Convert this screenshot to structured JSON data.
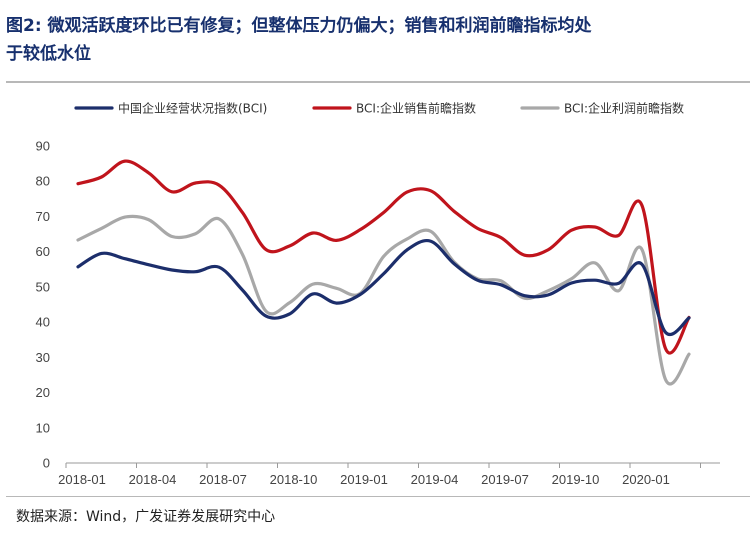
{
  "header": {
    "title_line1": "图2: 微观活跃度环比已有修复；但整体压力仍偏大；销售和利润前瞻指标均处",
    "title_line2": "于较低水位"
  },
  "footer": {
    "source": "数据来源：Wind，广发证券发展研究中心"
  },
  "colors": {
    "title": "#17306e",
    "bci": "#1c2e6b",
    "sales": "#c0141c",
    "profit": "#a8a8a8"
  },
  "chart_data": {
    "type": "line",
    "title": "",
    "xlabel": "",
    "ylabel": "",
    "ylim": [
      0,
      90
    ],
    "yticks": [
      "0",
      "10",
      "20",
      "30",
      "40",
      "50",
      "60",
      "70",
      "80",
      "90"
    ],
    "xtick_labels": [
      "2018-01",
      "2018-04",
      "2018-07",
      "2018-10",
      "2019-01",
      "2019-04",
      "2019-07",
      "2019-10",
      "2020-01"
    ],
    "x": [
      "2018-01",
      "2018-02",
      "2018-03",
      "2018-04",
      "2018-05",
      "2018-06",
      "2018-07",
      "2018-08",
      "2018-09",
      "2018-10",
      "2018-11",
      "2018-12",
      "2019-01",
      "2019-02",
      "2019-03",
      "2019-04",
      "2019-05",
      "2019-06",
      "2019-07",
      "2019-08",
      "2019-09",
      "2019-10",
      "2019-11",
      "2019-12",
      "2020-01",
      "2020-02",
      "2020-03"
    ],
    "legend": "top",
    "series": [
      {
        "name": "中国企业经营状况指数(BCI)",
        "key": "bci",
        "values": [
          55.7,
          59.5,
          58,
          56.3,
          54.8,
          54.3,
          55.6,
          49.1,
          41.7,
          42.3,
          48,
          45.4,
          47.8,
          53.7,
          60.5,
          63,
          56.6,
          51.9,
          50.6,
          47.5,
          47.7,
          51.1,
          51.9,
          51,
          56.4,
          37.1,
          41.2
        ]
      },
      {
        "name": "BCI:企业销售前瞻指数",
        "key": "sales",
        "values": [
          79.3,
          81.2,
          85.7,
          82.4,
          77,
          79.5,
          78.9,
          71.1,
          60.6,
          61.6,
          65.3,
          63.2,
          66.2,
          71.1,
          76.9,
          77.3,
          71.5,
          66.6,
          64,
          59,
          60.5,
          66.1,
          67,
          64.6,
          73.1,
          32.5,
          41.3
        ]
      },
      {
        "name": "BCI:企业利润前瞻指数",
        "key": "profit",
        "values": [
          63.3,
          66.6,
          69.8,
          69.1,
          64.3,
          65.1,
          69.3,
          59.2,
          43.1,
          45.5,
          50.8,
          49.6,
          48.1,
          58.6,
          63.6,
          65.8,
          57.1,
          52.3,
          51.7,
          46.8,
          48.9,
          52.3,
          56.8,
          48.9,
          60.6,
          23.7,
          30.9
        ]
      }
    ]
  }
}
